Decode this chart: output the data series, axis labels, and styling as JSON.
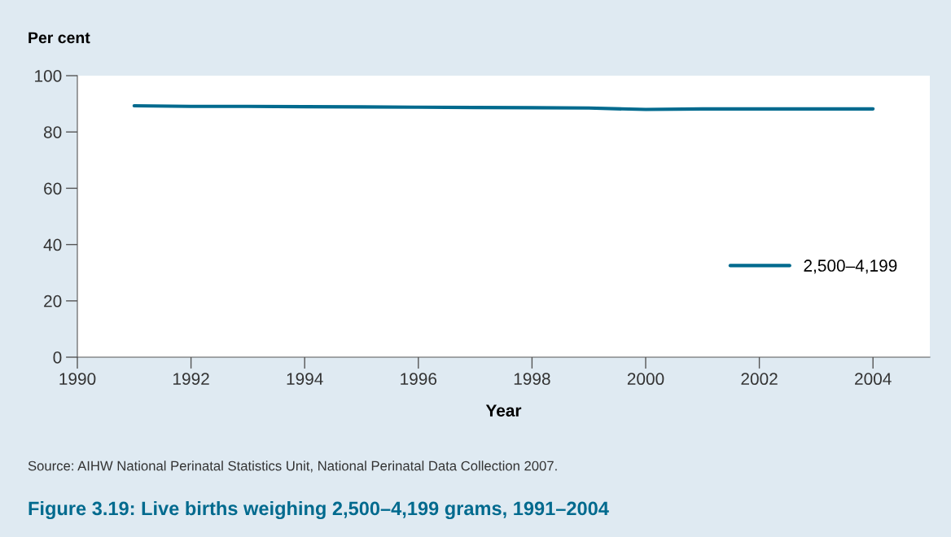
{
  "chart_data": {
    "type": "line",
    "title": "Figure 3.19: Live births weighing 2,500–4,199 grams, 1991–2004",
    "xlabel": "Year",
    "ylabel": "Per cent",
    "annotations": [
      "Source: AIHW National Perinatal Statistics Unit, National Perinatal Data Collection 2007."
    ],
    "x": [
      1991,
      1992,
      1993,
      1994,
      1995,
      1996,
      1997,
      1998,
      1999,
      2000,
      2001,
      2002,
      2003,
      2004
    ],
    "series": [
      {
        "name": "2,500–4,199",
        "color": "#006a8e",
        "values": [
          89.3,
          89.1,
          89.1,
          89.0,
          88.9,
          88.8,
          88.7,
          88.6,
          88.5,
          88.0,
          88.2,
          88.2,
          88.2,
          88.2
        ]
      }
    ],
    "xlim": [
      1990,
      2005
    ],
    "xticks": [
      1990,
      1992,
      1994,
      1996,
      1998,
      2000,
      2002,
      2004
    ],
    "ylim": [
      0,
      100
    ],
    "yticks": [
      0,
      20,
      40,
      60,
      80,
      100
    ],
    "grid": false,
    "legend": "right",
    "marker": "none",
    "line_style": "solid"
  }
}
